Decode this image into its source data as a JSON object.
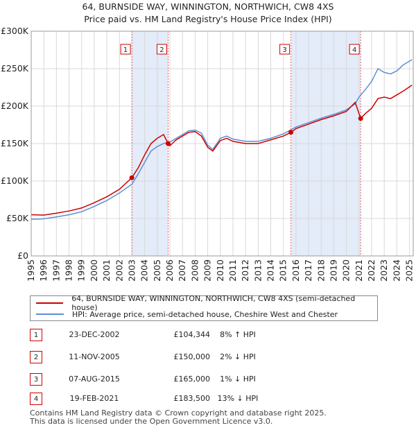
{
  "chart_data": {
    "type": "line",
    "title": "64, BURNSIDE WAY, WINNINGTON, NORTHWICH, CW8 4XS",
    "subtitle": "Price paid vs. HM Land Registry's House Price Index (HPI)",
    "xlim": [
      1995,
      2025.3
    ],
    "ylim": [
      0,
      300000
    ],
    "x_ticks": [
      "1995",
      "1996",
      "1997",
      "1998",
      "1999",
      "2000",
      "2001",
      "2002",
      "2003",
      "2004",
      "2005",
      "2006",
      "2007",
      "2008",
      "2009",
      "2010",
      "2011",
      "2012",
      "2013",
      "2014",
      "2015",
      "2016",
      "2017",
      "2018",
      "2019",
      "2020",
      "2021",
      "2022",
      "2023",
      "2024",
      "2025"
    ],
    "y_ticks": [
      {
        "value": 0,
        "label": "£0"
      },
      {
        "value": 50000,
        "label": "£50K"
      },
      {
        "value": 100000,
        "label": "£100K"
      },
      {
        "value": 150000,
        "label": "£150K"
      },
      {
        "value": 200000,
        "label": "£200K"
      },
      {
        "value": 250000,
        "label": "£250K"
      },
      {
        "value": 300000,
        "label": "£300K"
      }
    ],
    "shaded_spans": [
      [
        2002.98,
        2005.86
      ],
      [
        2015.6,
        2021.13
      ]
    ],
    "series": [
      {
        "name": "64, BURNSIDE WAY, WINNINGTON, NORTHWICH, CW8 4XS (semi-detached house)",
        "color": "#cc0000",
        "points": [
          [
            1995,
            55000
          ],
          [
            1996,
            54500
          ],
          [
            1997,
            57000
          ],
          [
            1998,
            60000
          ],
          [
            1999,
            64000
          ],
          [
            2000,
            71000
          ],
          [
            2001,
            79000
          ],
          [
            2002,
            89000
          ],
          [
            2002.98,
            104344
          ],
          [
            2003.5,
            118000
          ],
          [
            2004,
            135000
          ],
          [
            2004.5,
            150000
          ],
          [
            2005,
            157000
          ],
          [
            2005.5,
            162000
          ],
          [
            2005.86,
            150000
          ],
          [
            2006,
            147000
          ],
          [
            2006.5,
            155000
          ],
          [
            2007,
            160000
          ],
          [
            2007.5,
            165000
          ],
          [
            2008,
            166000
          ],
          [
            2008.5,
            160000
          ],
          [
            2009,
            145000
          ],
          [
            2009.4,
            140000
          ],
          [
            2010,
            154000
          ],
          [
            2010.5,
            157000
          ],
          [
            2011,
            153000
          ],
          [
            2012,
            150000
          ],
          [
            2013,
            150000
          ],
          [
            2014,
            155000
          ],
          [
            2015,
            160000
          ],
          [
            2015.6,
            165000
          ],
          [
            2016,
            170000
          ],
          [
            2017,
            176000
          ],
          [
            2018,
            182000
          ],
          [
            2019,
            187000
          ],
          [
            2020,
            193000
          ],
          [
            2020.7,
            205000
          ],
          [
            2021.13,
            183500
          ],
          [
            2021.5,
            190000
          ],
          [
            2022,
            197000
          ],
          [
            2022.5,
            210000
          ],
          [
            2023,
            212000
          ],
          [
            2023.5,
            210000
          ],
          [
            2024,
            215000
          ],
          [
            2024.5,
            220000
          ],
          [
            2025.2,
            228000
          ]
        ]
      },
      {
        "name": "HPI: Average price, semi-detached house, Cheshire West and Chester",
        "color": "#5b8fd0",
        "points": [
          [
            1995,
            49000
          ],
          [
            1996,
            49500
          ],
          [
            1997,
            52000
          ],
          [
            1998,
            55000
          ],
          [
            1999,
            59000
          ],
          [
            2000,
            66000
          ],
          [
            2001,
            74000
          ],
          [
            2002,
            84000
          ],
          [
            2003,
            96000
          ],
          [
            2003.5,
            110000
          ],
          [
            2004,
            125000
          ],
          [
            2004.5,
            140000
          ],
          [
            2005,
            146000
          ],
          [
            2005.5,
            150000
          ],
          [
            2006,
            152000
          ],
          [
            2006.5,
            157000
          ],
          [
            2007,
            162000
          ],
          [
            2007.5,
            167000
          ],
          [
            2008,
            168000
          ],
          [
            2008.5,
            164000
          ],
          [
            2009,
            148000
          ],
          [
            2009.4,
            142000
          ],
          [
            2010,
            157000
          ],
          [
            2010.5,
            160000
          ],
          [
            2011,
            156000
          ],
          [
            2012,
            153000
          ],
          [
            2013,
            153000
          ],
          [
            2014,
            157000
          ],
          [
            2015,
            163000
          ],
          [
            2016,
            172000
          ],
          [
            2017,
            178000
          ],
          [
            2018,
            184000
          ],
          [
            2019,
            189000
          ],
          [
            2020,
            195000
          ],
          [
            2020.7,
            203000
          ],
          [
            2021,
            212000
          ],
          [
            2021.5,
            222000
          ],
          [
            2022,
            233000
          ],
          [
            2022.5,
            250000
          ],
          [
            2023,
            245000
          ],
          [
            2023.5,
            243000
          ],
          [
            2024,
            247000
          ],
          [
            2024.5,
            255000
          ],
          [
            2025.2,
            262000
          ]
        ]
      }
    ],
    "markers": [
      {
        "label": "1",
        "x": 2002.98,
        "y": 104344
      },
      {
        "label": "2",
        "x": 2005.86,
        "y": 150000
      },
      {
        "label": "3",
        "x": 2015.6,
        "y": 165000
      },
      {
        "label": "4",
        "x": 2021.13,
        "y": 183500
      }
    ]
  },
  "legend": {
    "property": "64, BURNSIDE WAY, WINNINGTON, NORTHWICH, CW8 4XS (semi-detached house)",
    "hpi": "HPI: Average price, semi-detached house, Cheshire West and Chester",
    "property_color": "#cc0000",
    "hpi_color": "#5b8fd0"
  },
  "transactions": [
    {
      "num": "1",
      "date": "23-DEC-2002",
      "price": "£104,344",
      "hpi": "8% ↑ HPI"
    },
    {
      "num": "2",
      "date": "11-NOV-2005",
      "price": "£150,000",
      "hpi": "2% ↓ HPI"
    },
    {
      "num": "3",
      "date": "07-AUG-2015",
      "price": "£165,000",
      "hpi": "1% ↓ HPI"
    },
    {
      "num": "4",
      "date": "19-FEB-2021",
      "price": "£183,500",
      "hpi": "13% ↓ HPI"
    }
  ],
  "footer": {
    "line1": "Contains HM Land Registry data © Crown copyright and database right 2025.",
    "line2": "This data is licensed under the Open Government Licence v3.0."
  }
}
